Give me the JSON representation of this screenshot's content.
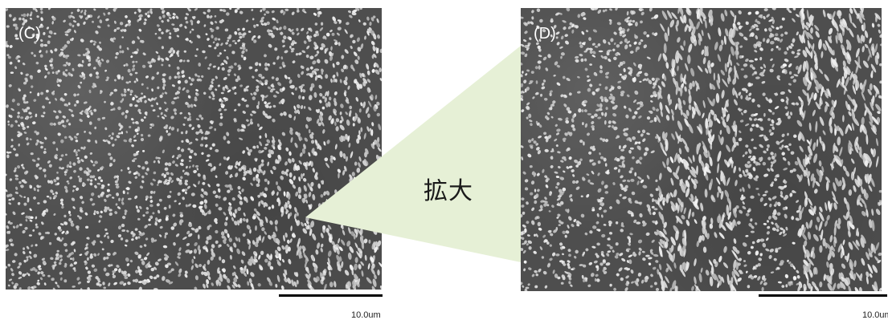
{
  "panels": {
    "left": {
      "label": "(C)",
      "scale_text": "10.0um"
    },
    "right": {
      "label": "(D)",
      "scale_text": "10.0um"
    }
  },
  "zoom_label": "拡大",
  "colors": {
    "background": "#ffffff",
    "sem_base": "#4e4e4e",
    "particle": "#d4d4d4",
    "callout_fill": "#e6f0d6",
    "scale_bar": "#000000"
  }
}
